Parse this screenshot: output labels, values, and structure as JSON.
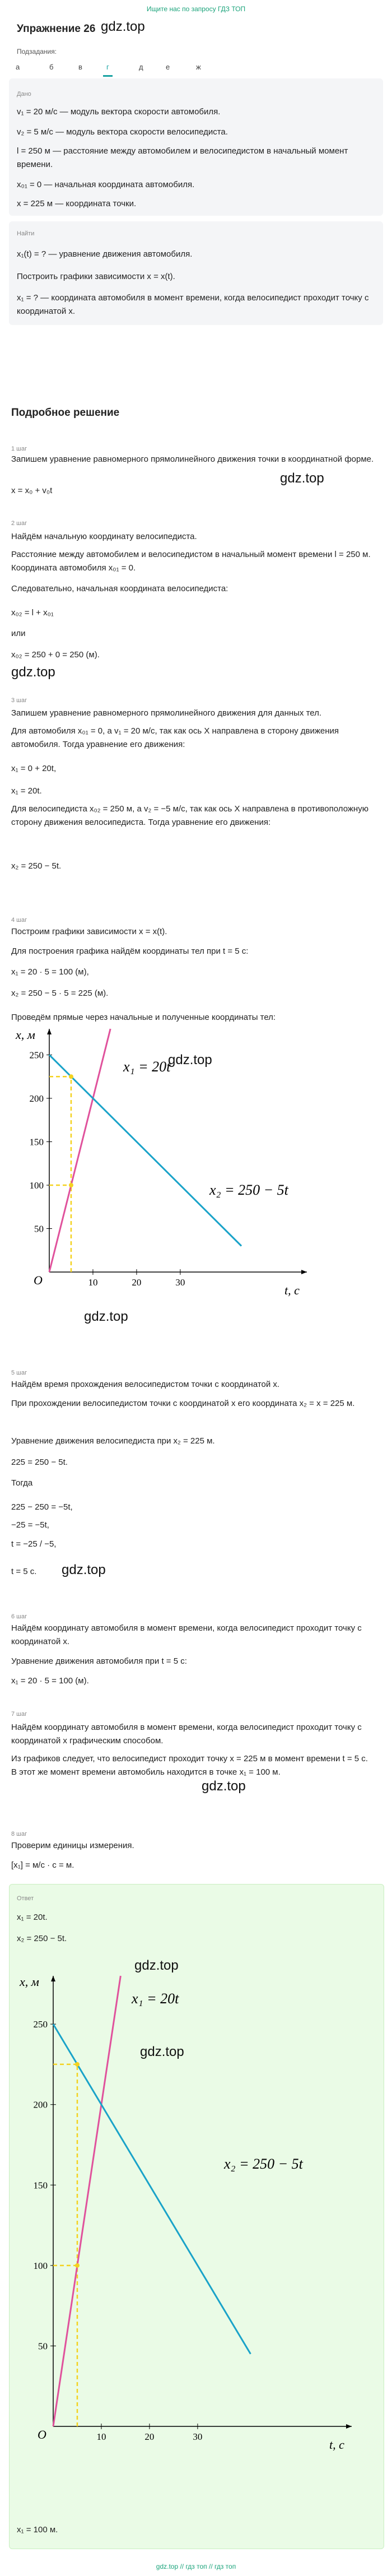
{
  "banner": "Ищите нас по запросу ГДЗ ТОП",
  "header": {
    "title": "Упражнение 26",
    "watermark": "gdz.top"
  },
  "subtasks": {
    "label": "Подзадания:",
    "items": [
      "а",
      "б",
      "в",
      "г",
      "д",
      "е",
      "ж"
    ],
    "selected": 3
  },
  "given": {
    "label": "Дано",
    "lines": [
      "v₁ = 20 м/с — модуль вектора скорости автомобиля.",
      "v₂ = 5 м/с — модуль вектора скорости велосипедиста.",
      "l = 250 м — расстояние между автомобилем и велосипедистом в начальный момент времени.",
      "x₀₁ = 0 — начальная координата автомобиля.",
      "x = 225 м — координата точки."
    ]
  },
  "find": {
    "label": "Найти",
    "lines": [
      "x₁(t) = ? — уравнение движения автомобиля.",
      "Построить графики зависимости x = x(t).",
      "x₁ = ? — координата автомобиля в момент времени, когда велосипедист проходит точку с координатой x."
    ]
  },
  "solution": {
    "title": "Подробное решение",
    "steps": [
      {
        "label": "1 шаг",
        "lines": [
          "Запишем уравнение равномерного прямолинейного движения точки в координатной форме.",
          "x = x₀ + v₀t"
        ]
      },
      {
        "label": "2 шаг",
        "lines": [
          "Найдём начальную координату велосипедиста.",
          "Расстояние между автомобилем и велосипедистом в начальный момент времени l = 250 м. Координата автомобиля x₀₁ = 0.",
          "Следовательно, начальная координата велосипедиста:",
          "x₀₂ = l + x₀₁",
          "или",
          "x₀₂ = 250 + 0 = 250 (м)."
        ]
      },
      {
        "label": "3 шаг",
        "lines": [
          "Запишем уравнение равномерного прямолинейного движения для данных тел.",
          "Для автомобиля x₀₁ = 0, а v₁ = 20 м/с, так как ось X направлена в сторону движения автомобиля. Тогда уравнение его движения:",
          "x₁ = 0 + 20t,",
          "x₁ = 20t.",
          "Для велосипедиста x₀₂ = 250 м, а v₂ = −5 м/с, так как ось X направлена в противоположную сторону движения велосипедиста. Тогда уравнение его движения:",
          "x₂ = 250 − 5t."
        ]
      },
      {
        "label": "4 шаг",
        "lines": [
          "Построим графики зависимости x = x(t).",
          "Для построения графика найдём координаты тел при t = 5 с:",
          "x₁ = 20 · 5 = 100 (м),",
          "x₂ = 250 − 5 · 5 = 225 (м).",
          "Проведём прямые через начальные и полученные координаты тел:"
        ]
      },
      {
        "label": "5 шаг",
        "lines": [
          "Найдём время прохождения велосипедистом точки с координатой x.",
          "При прохождении велосипедистом точки с координатой x его координата x₂ = x = 225 м.",
          "Уравнение движения велосипедиста при x₂ = 225 м.",
          "225 = 250 − 5t.",
          "Тогда",
          "225 − 250 = −5t,",
          "−25 = −5t,",
          "t = −25 / −5,",
          "t = 5 с."
        ]
      },
      {
        "label": "6 шаг",
        "lines": [
          "Найдём координату автомобиля в момент времени, когда велосипедист проходит точку с координатой x.",
          "Уравнение движения автомобиля при t = 5 с:",
          "x₁ = 20 · 5 = 100 (м)."
        ]
      },
      {
        "label": "7 шаг",
        "lines": [
          "Найдём координату автомобиля в момент времени, когда велосипедист проходит точку с координатой x графическим способом.",
          "Из графиков следует, что велосипедист проходит точку x = 225 м в момент времени t = 5 с. В этот же момент времени автомобиль находится в точке x₁ = 100 м."
        ]
      },
      {
        "label": "8 шаг",
        "lines": [
          "Проверим единицы измерения.",
          "[x₁] = м/с · с = м."
        ]
      }
    ]
  },
  "graphs": [
    {
      "y_label": "x, м",
      "x_label": "t, с",
      "origin_label": "O",
      "xlim": [
        0,
        59
      ],
      "ylim": [
        0,
        280
      ],
      "xticks": [
        10,
        20,
        30
      ],
      "yticks": [
        50,
        100,
        150,
        200,
        250
      ],
      "lines": [
        {
          "label": "x₁ = 20t",
          "color": "#e0529c",
          "x": [
            0,
            14
          ],
          "values": [
            0,
            280
          ]
        },
        {
          "label": "x₂ = 250 − 5t",
          "color": "#1aa3c9",
          "x": [
            0,
            44
          ],
          "values": [
            250,
            30
          ]
        }
      ],
      "markers": {
        "x": 5,
        "values": [
          100,
          225
        ],
        "color": "#f4d21f"
      }
    },
    {
      "y_label": "x, м",
      "x_label": "t, с",
      "origin_label": "O",
      "xlim": [
        0,
        62
      ],
      "ylim": [
        0,
        280
      ],
      "xticks": [
        10,
        20,
        30
      ],
      "yticks": [
        50,
        100,
        150,
        200,
        250
      ],
      "lines": [
        {
          "label": "x₁ = 20t",
          "color": "#e0529c",
          "x": [
            0,
            14
          ],
          "values": [
            0,
            280
          ]
        },
        {
          "label": "x₂ = 250 − 5t",
          "color": "#1aa3c9",
          "x": [
            0,
            41
          ],
          "values": [
            250,
            45
          ]
        }
      ],
      "markers": {
        "x": 5,
        "values": [
          100,
          225
        ],
        "color": "#f4d21f"
      }
    }
  ],
  "watermarks": [
    "gdz.top",
    "gdz.top",
    "gdz.top",
    "gdz.top",
    "gdz.top",
    "gdz.top",
    "gdz.top",
    "gdz.top"
  ],
  "answer": {
    "label": "Ответ",
    "lines": [
      "x₁ = 20t.",
      "x₂ = 250 − 5t."
    ],
    "result": "x₁ = 100 м."
  },
  "footer": "gdz.top // гдз топ // гдз топ"
}
